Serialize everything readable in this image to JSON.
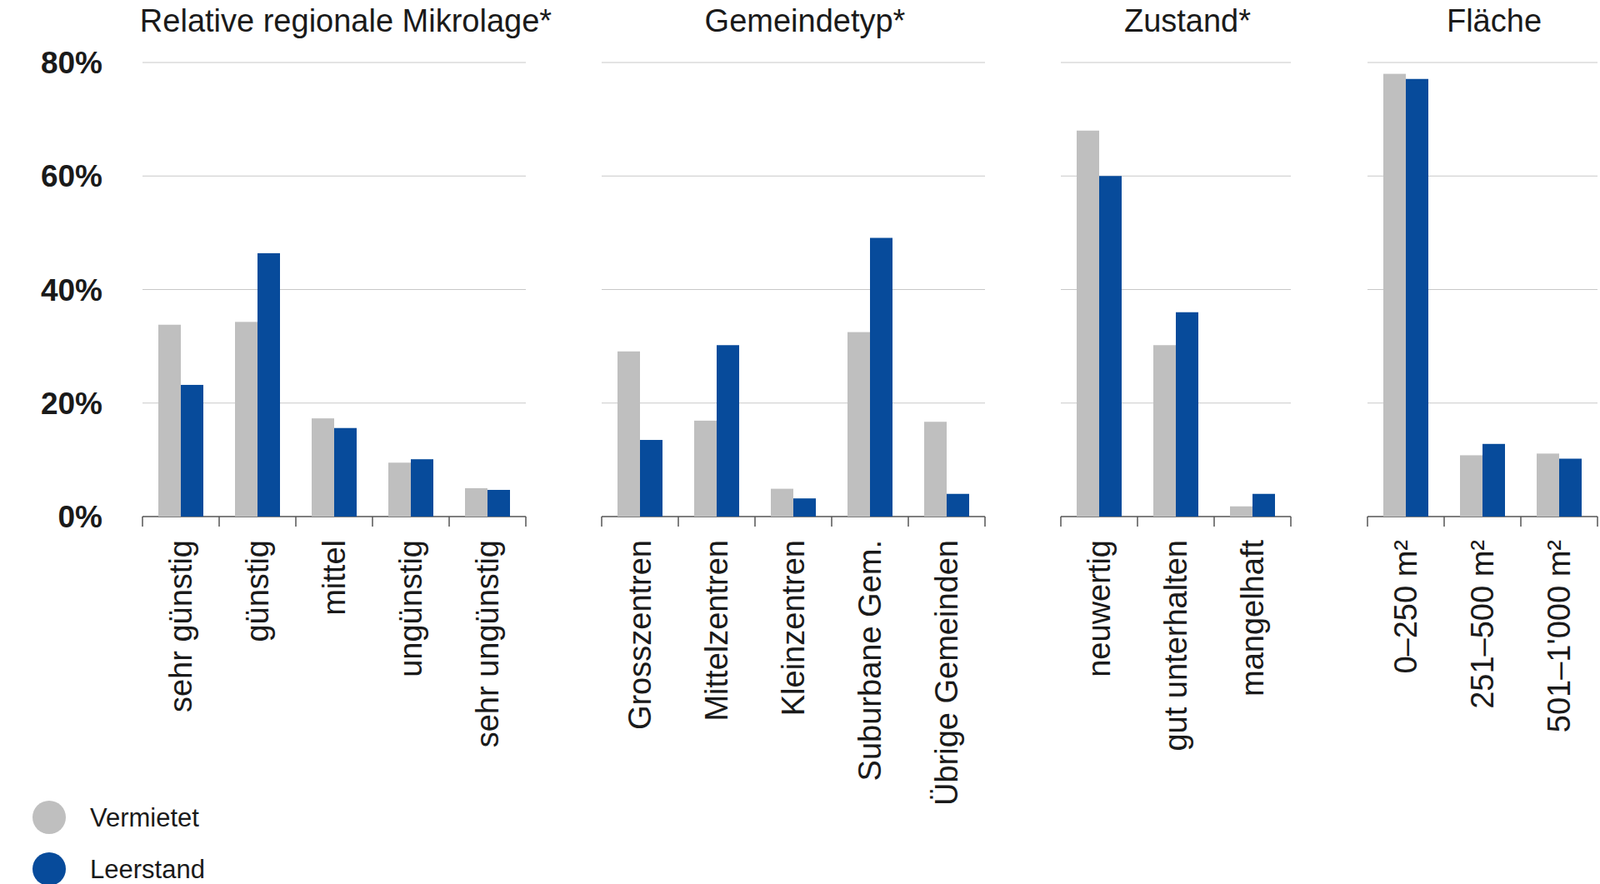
{
  "chart_data": [
    {
      "type": "bar",
      "title": "Relative regionale Mikrolage*",
      "categories": [
        "sehr günstig",
        "günstig",
        "mittel",
        "ungünstig",
        "sehr ungünstig"
      ],
      "series": [
        {
          "name": "Vermietet",
          "color": "#bfbfbf",
          "values": [
            33.8,
            34.3,
            17.3,
            9.5,
            5.0
          ]
        },
        {
          "name": "Leerstand",
          "color": "#074b9b",
          "values": [
            23.2,
            46.4,
            15.6,
            10.1,
            4.7
          ]
        }
      ],
      "ylim": [
        0,
        80
      ],
      "yticks": [
        {
          "value": 0,
          "label": "0%"
        },
        {
          "value": 20,
          "label": "20%"
        },
        {
          "value": 40,
          "label": "40%"
        },
        {
          "value": 60,
          "label": "60%"
        },
        {
          "value": 80,
          "label": "80%"
        }
      ],
      "grid": true,
      "legend": "bottom-left"
    },
    {
      "type": "bar",
      "title": "Gemeindetyp*",
      "categories": [
        "Grosszentren",
        "Mittelzentren",
        "Kleinzentren",
        "Suburbane Gem.",
        "Übrige Gemeinden"
      ],
      "series": [
        {
          "name": "Vermietet",
          "color": "#bfbfbf",
          "values": [
            29.1,
            16.9,
            4.9,
            32.5,
            16.7
          ]
        },
        {
          "name": "Leerstand",
          "color": "#074b9b",
          "values": [
            13.5,
            30.2,
            3.2,
            49.1,
            4.0
          ]
        }
      ],
      "ylim": [
        0,
        80
      ],
      "yticks": [
        0,
        20,
        40,
        60,
        80
      ],
      "grid": true,
      "tick_labels": "x"
    },
    {
      "type": "bar",
      "title": "Zustand*",
      "categories": [
        "neuwertig",
        "gut unterhalten",
        "mangelhaft"
      ],
      "series": [
        {
          "name": "Vermietet",
          "color": "#bfbfbf",
          "values": [
            68.0,
            30.2,
            1.8
          ]
        },
        {
          "name": "Leerstand",
          "color": "#074b9b",
          "values": [
            60.0,
            36.0,
            4.0
          ]
        }
      ],
      "ylim": [
        0,
        80
      ],
      "yticks": [
        0,
        20,
        40,
        60,
        80
      ],
      "grid": true,
      "tick_labels": "x"
    },
    {
      "type": "bar",
      "title": "Fläche",
      "categories": [
        "0–250 m²",
        "251–500 m²",
        "501–1'000 m²"
      ],
      "series": [
        {
          "name": "Vermietet",
          "color": "#bfbfbf",
          "values": [
            78.0,
            10.8,
            11.1
          ]
        },
        {
          "name": "Leerstand",
          "color": "#074b9b",
          "values": [
            77.1,
            12.8,
            10.2
          ]
        }
      ],
      "ylim": [
        0,
        80
      ],
      "yticks": [
        0,
        20,
        40,
        60,
        80
      ],
      "grid": true,
      "tick_labels": "x"
    }
  ]
}
